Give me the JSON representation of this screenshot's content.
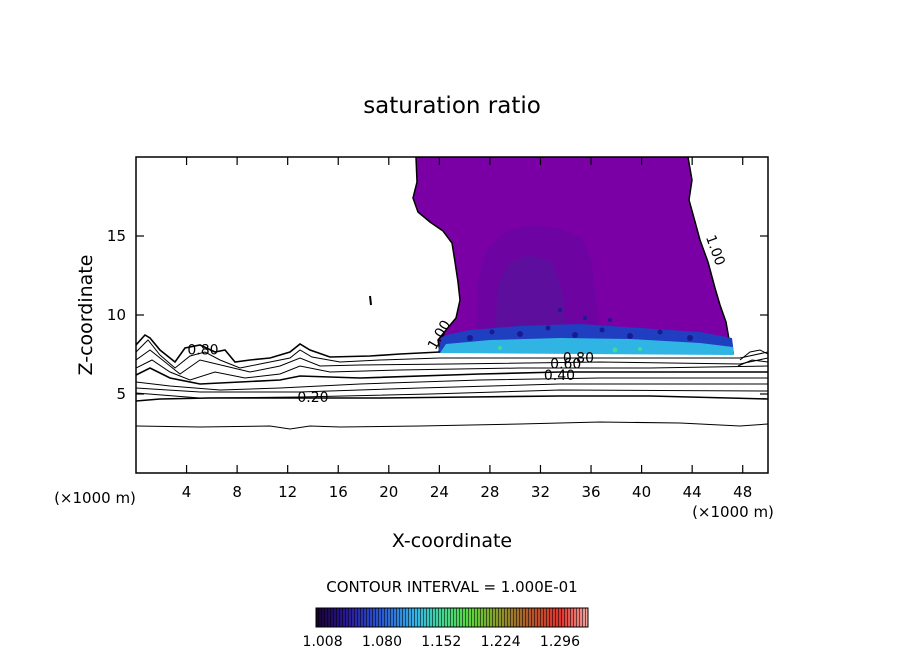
{
  "chart_data": {
    "type": "contour",
    "title": "saturation ratio",
    "xlabel": "X-coordinate",
    "ylabel": "Z-coordinate",
    "x_unit_label": "(×1000 m)",
    "x_ticks": [
      4,
      8,
      12,
      16,
      20,
      24,
      28,
      32,
      36,
      40,
      44,
      48
    ],
    "y_ticks": [
      5,
      10,
      15
    ],
    "xlim": [
      0,
      50
    ],
    "ylim": [
      0,
      20
    ],
    "contour_interval_text": "CONTOUR INTERVAL = 1.000E-01",
    "colorbar_ticks": [
      "1.008",
      "1.080",
      "1.152",
      "1.224",
      "1.296"
    ],
    "colorbar_range": [
      1.0,
      1.33
    ],
    "contour_labels": [
      {
        "text": "0.20",
        "x": 14,
        "y": 4.5
      },
      {
        "text": "0.40",
        "x": 33.5,
        "y": 5.9
      },
      {
        "text": "0.60",
        "x": 34,
        "y": 6.6
      },
      {
        "text": "0.80",
        "x": 35,
        "y": 7.0
      },
      {
        "text": "0.80",
        "x": 5.3,
        "y": 7.5
      },
      {
        "text": "1.00",
        "x": 24.3,
        "y": 8.6
      },
      {
        "text": "1.00",
        "x": 45.5,
        "y": 14.0
      }
    ],
    "grid": false,
    "cloud_region": {
      "x_range": [
        22,
        47
      ],
      "z_range": [
        7.5,
        20
      ]
    }
  }
}
